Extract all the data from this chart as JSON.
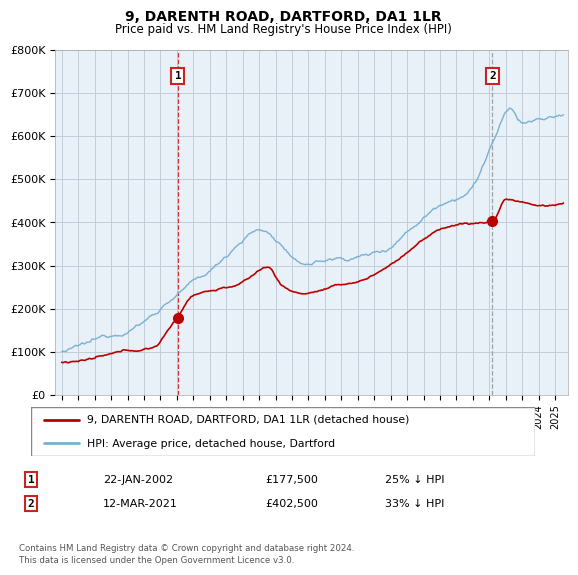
{
  "title": "9, DARENTH ROAD, DARTFORD, DA1 1LR",
  "subtitle": "Price paid vs. HM Land Registry's House Price Index (HPI)",
  "ylabel_ticks": [
    "£0",
    "£100K",
    "£200K",
    "£300K",
    "£400K",
    "£500K",
    "£600K",
    "£700K",
    "£800K"
  ],
  "ytick_values": [
    0,
    100000,
    200000,
    300000,
    400000,
    500000,
    600000,
    700000,
    800000
  ],
  "ylim": [
    0,
    800000
  ],
  "sale1_x": 2002.06,
  "sale1_price": 177500,
  "sale2_x": 2021.19,
  "sale2_price": 402500,
  "legend_label_red": "9, DARENTH ROAD, DARTFORD, DA1 1LR (detached house)",
  "legend_label_blue": "HPI: Average price, detached house, Dartford",
  "footer": "Contains HM Land Registry data © Crown copyright and database right 2024.\nThis data is licensed under the Open Government Licence v3.0.",
  "red_color": "#bb0000",
  "blue_color": "#7ab0d4",
  "chart_bg": "#e8f0f8",
  "fig_bg": "#ffffff",
  "grid_color": "#c0ccd8",
  "vline1_color": "#cc2222",
  "vline2_color": "#999999",
  "sale1_date_str": "22-JAN-2002",
  "sale1_price_str": "£177,500",
  "sale1_pct_str": "25% ↓ HPI",
  "sale2_date_str": "12-MAR-2021",
  "sale2_price_str": "£402,500",
  "sale2_pct_str": "33% ↓ HPI"
}
